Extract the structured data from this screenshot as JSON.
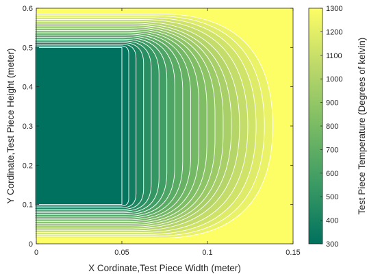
{
  "chart_data": {
    "type": "heatmap",
    "subtype": "filled-contour",
    "title": "",
    "xlabel": "X Cordinate,Test Piece Width (meter)",
    "ylabel": "Y Cordinate,Test Piece Height (meter)",
    "xlim": [
      0,
      0.15
    ],
    "ylim": [
      0,
      0.6
    ],
    "xticks": [
      "0",
      "0.05",
      "0.1",
      "0.15"
    ],
    "yticks": [
      "0",
      "0.1",
      "0.2",
      "0.3",
      "0.4",
      "0.5",
      "0.6"
    ],
    "colorbar": {
      "label": "Test Piece Temperature (Degrees of kelvin)",
      "range": [
        300,
        1300
      ],
      "ticks": [
        "300",
        "400",
        "500",
        "600",
        "700",
        "800",
        "900",
        "1000",
        "1100",
        "1200",
        "1300"
      ],
      "colormap": [
        "#00715e",
        "#3a9a64",
        "#79bb64",
        "#bcd86a",
        "#fdfd65"
      ]
    },
    "inner_region": {
      "x": [
        0,
        0.05
      ],
      "y": [
        0.1,
        0.5
      ],
      "temperature": 300
    },
    "boundary_temperature": 1300,
    "contour_levels": [
      350,
      400,
      450,
      500,
      550,
      600,
      650,
      700,
      750,
      800,
      850,
      900,
      950,
      1000,
      1050,
      1100,
      1150,
      1200,
      1250
    ],
    "contour_line_color": "#ffffff",
    "grid": false
  }
}
